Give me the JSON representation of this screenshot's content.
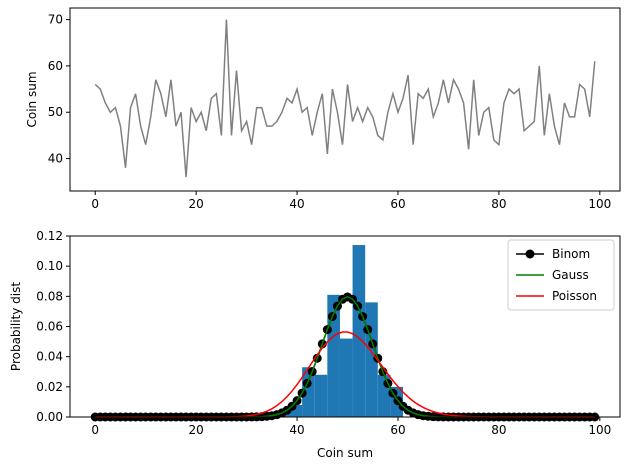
{
  "chart_data": [
    {
      "type": "line",
      "ylabel": "Coin sum",
      "xlabel": "",
      "xlim": [
        -5,
        104
      ],
      "ylim": [
        33.0,
        72.5
      ],
      "xticks": [
        0,
        20,
        40,
        60,
        80,
        100
      ],
      "yticks": [
        40,
        50,
        60,
        70
      ],
      "grid": false,
      "series": [
        {
          "color": "#808080",
          "x": [
            0,
            1,
            2,
            3,
            4,
            5,
            6,
            7,
            8,
            9,
            10,
            11,
            12,
            13,
            14,
            15,
            16,
            17,
            18,
            19,
            20,
            21,
            22,
            23,
            24,
            25,
            26,
            27,
            28,
            29,
            30,
            31,
            32,
            33,
            34,
            35,
            36,
            37,
            38,
            39,
            40,
            41,
            42,
            43,
            44,
            45,
            46,
            47,
            48,
            49,
            50,
            51,
            52,
            53,
            54,
            55,
            56,
            57,
            58,
            59,
            60,
            61,
            62,
            63,
            64,
            65,
            66,
            67,
            68,
            69,
            70,
            71,
            72,
            73,
            74,
            75,
            76,
            77,
            78,
            79,
            80,
            81,
            82,
            83,
            84,
            85,
            86,
            87,
            88,
            89,
            90,
            91,
            92,
            93,
            94,
            95,
            96,
            97,
            98,
            99
          ],
          "values": [
            56,
            55,
            52,
            50,
            51,
            47,
            38,
            51,
            54,
            47,
            43,
            49,
            57,
            54,
            49,
            57,
            47,
            50,
            36,
            51,
            48,
            50,
            46,
            53,
            54,
            45,
            70,
            45,
            59,
            46,
            48,
            43,
            51,
            51,
            47,
            47,
            48,
            50,
            53,
            52,
            55,
            50,
            51,
            45,
            50,
            54,
            41,
            55,
            50,
            43,
            56,
            48,
            51,
            48,
            51,
            49,
            45,
            44,
            50,
            54,
            50,
            53,
            58,
            43,
            54,
            53,
            55,
            49,
            52,
            57,
            52,
            57,
            55,
            52,
            42,
            57,
            45,
            50,
            51,
            44,
            43,
            52,
            55,
            54,
            55,
            46,
            47,
            48,
            60,
            45,
            54,
            47,
            43,
            52,
            49,
            49,
            56,
            55,
            49,
            61
          ]
        }
      ]
    },
    {
      "type": "bar",
      "xlabel": "Coin sum",
      "ylabel": "Probability dist",
      "xlim": [
        -5,
        104
      ],
      "ylim": [
        0.0,
        0.12
      ],
      "xticks": [
        0,
        20,
        40,
        60,
        80,
        100
      ],
      "yticks": [
        0.0,
        0.02,
        0.04,
        0.06,
        0.08,
        0.1,
        0.12
      ],
      "ytick_labels": [
        "0.00",
        "0.02",
        "0.04",
        "0.06",
        "0.08",
        "0.10",
        "0.12"
      ],
      "grid": false,
      "legend_position": "top-right",
      "histogram": {
        "color": "#1f77b4",
        "bin_width": 2.5,
        "bins": [
          {
            "x0": 36.0,
            "x1": 38.5,
            "value": 0.004
          },
          {
            "x0": 38.5,
            "x1": 41.0,
            "value": 0.008
          },
          {
            "x0": 41.0,
            "x1": 43.5,
            "value": 0.033
          },
          {
            "x0": 43.5,
            "x1": 46.0,
            "value": 0.028
          },
          {
            "x0": 46.0,
            "x1": 48.5,
            "value": 0.081
          },
          {
            "x0": 48.5,
            "x1": 51.0,
            "value": 0.052
          },
          {
            "x0": 51.0,
            "x1": 53.5,
            "value": 0.114
          },
          {
            "x0": 53.5,
            "x1": 56.0,
            "value": 0.076
          },
          {
            "x0": 56.0,
            "x1": 58.5,
            "value": 0.028
          },
          {
            "x0": 58.5,
            "x1": 61.0,
            "value": 0.02
          }
        ]
      },
      "series": [
        {
          "name": "Binom",
          "kind": "binomial",
          "n": 100,
          "p": 0.5,
          "x_min": 0,
          "x_max": 99,
          "color": "#000000",
          "marker": "circle",
          "marker_face": "#000000"
        },
        {
          "name": "Gauss",
          "kind": "gaussian",
          "mean": 50,
          "std": 5,
          "x_min": 0,
          "x_max": 99,
          "color": "#008000"
        },
        {
          "name": "Poisson",
          "kind": "poisson",
          "mean": 50,
          "x_min": 0,
          "x_max": 99,
          "color": "#ff0000"
        }
      ]
    }
  ]
}
